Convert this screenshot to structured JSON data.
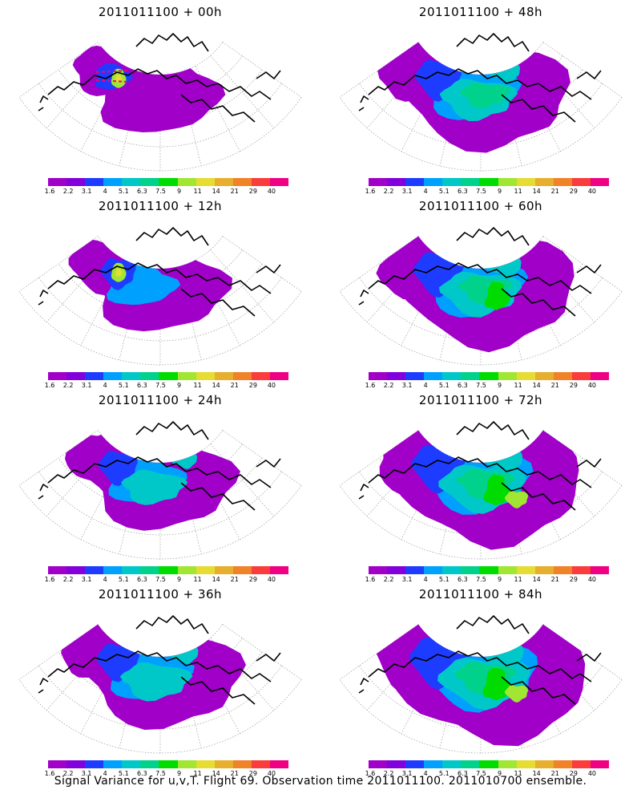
{
  "caption": "Signal Variance for u,v,T. Flight 69. Observation time 2011011100. 2011010700 ensemble.",
  "colorbar": {
    "colors": [
      "#a000c8",
      "#8200dc",
      "#1e3cff",
      "#00a0ff",
      "#00c8c8",
      "#00d28c",
      "#00dc00",
      "#a0e632",
      "#e6dc32",
      "#e6af2d",
      "#f08228",
      "#fa3c3c",
      "#f00082"
    ],
    "labels": [
      "1.6",
      "2.2",
      "3.1",
      "4",
      "5.1",
      "6.3",
      "7.5",
      "9",
      "11",
      "14",
      "21",
      "29",
      "40"
    ]
  },
  "panels": [
    {
      "title": "2011011100 + 00h",
      "intensity": 0
    },
    {
      "title": "2011011100 + 48h",
      "intensity": 4
    },
    {
      "title": "2011011100 + 12h",
      "intensity": 1
    },
    {
      "title": "2011011100 + 60h",
      "intensity": 5
    },
    {
      "title": "2011011100 + 24h",
      "intensity": 2
    },
    {
      "title": "2011011100 + 72h",
      "intensity": 6
    },
    {
      "title": "2011011100 + 36h",
      "intensity": 3
    },
    {
      "title": "2011011100 + 84h",
      "intensity": 7
    }
  ]
}
